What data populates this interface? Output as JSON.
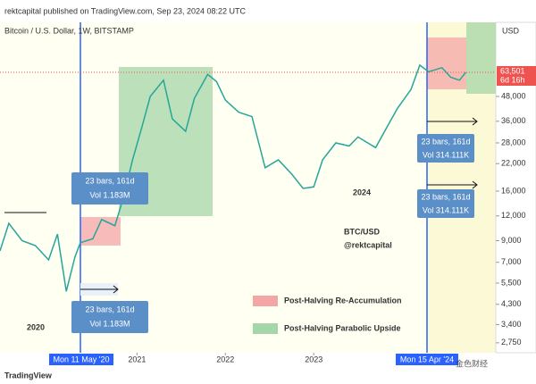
{
  "header": {
    "publisher": "rektcapital published on TradingView.com, Sep 23, 2024 08:22 UTC"
  },
  "chart_data": {
    "type": "line",
    "title": "Bitcoin / U.S. Dollar, 1W, BITSTAMP",
    "x": [
      2019.45,
      2019.55,
      2019.7,
      2019.85,
      2020.0,
      2020.1,
      2020.2,
      2020.3,
      2020.36,
      2020.5,
      2020.6,
      2020.75,
      2020.85,
      2020.95,
      2021.05,
      2021.15,
      2021.3,
      2021.4,
      2021.55,
      2021.65,
      2021.8,
      2021.9,
      2022.0,
      2022.15,
      2022.3,
      2022.45,
      2022.6,
      2022.75,
      2022.88,
      2023.0,
      2023.1,
      2023.25,
      2023.4,
      2023.5,
      2023.7,
      2023.85,
      2023.95,
      2024.1,
      2024.2,
      2024.3,
      2024.45,
      2024.55,
      2024.65,
      2024.72
    ],
    "values": [
      8000,
      11000,
      9000,
      8500,
      7200,
      9700,
      5000,
      7500,
      8800,
      9200,
      11500,
      10700,
      15000,
      23000,
      33000,
      48000,
      58000,
      37000,
      32000,
      47000,
      62000,
      57000,
      46000,
      40000,
      38000,
      21000,
      23000,
      19500,
      16500,
      16800,
      23000,
      28000,
      27000,
      30000,
      26500,
      35000,
      42000,
      52000,
      69000,
      64000,
      67000,
      60000,
      58000,
      63501
    ],
    "color": "#26a69a",
    "log_scale": true,
    "xlim": [
      2019.45,
      2025.06
    ],
    "xticks": [
      2021,
      2022,
      2023
    ],
    "ylim": [
      2450,
      113500
    ],
    "yticks": [
      {
        "value": 48000,
        "label": "48,000"
      },
      {
        "value": 36000,
        "label": "36,000"
      },
      {
        "value": 28000,
        "label": "28,000"
      },
      {
        "value": 22000,
        "label": "22,000"
      },
      {
        "value": 16000,
        "label": "16,000"
      },
      {
        "value": 12000,
        "label": "12,000"
      },
      {
        "value": 9000,
        "label": "9,000"
      },
      {
        "value": 7000,
        "label": "7,000"
      },
      {
        "value": 5500,
        "label": "5,500"
      },
      {
        "value": 4300,
        "label": "4,300"
      },
      {
        "value": 3400,
        "label": "3,400"
      },
      {
        "value": 2750,
        "label": "2,750"
      }
    ],
    "currency": "USD",
    "price_tag": "63,501",
    "countdown": "6d 16h",
    "halving_labels": [
      "Mon 11 May '20",
      "Mon 15 Apr '24"
    ],
    "measure_boxes": [
      {
        "bars": "23 bars, 161d",
        "vol": "Vol 1.183M"
      },
      {
        "bars": "23 bars, 161d",
        "vol": "Vol 1.183M"
      },
      {
        "bars": "23 bars, 161d",
        "vol": "Vol 314.111K"
      },
      {
        "bars": "23 bars, 161d",
        "vol": "Vol 314.111K"
      }
    ],
    "year_labels": [
      "2020",
      "2024"
    ],
    "symbol": "BTC/USD",
    "author": "@rektcapital",
    "legend": [
      "Post-Halving Re-Accumulation",
      "Post-Halving Parabolic Upside"
    ]
  },
  "footer": {
    "brand": "TradingView",
    "watermark": "金色财经"
  }
}
